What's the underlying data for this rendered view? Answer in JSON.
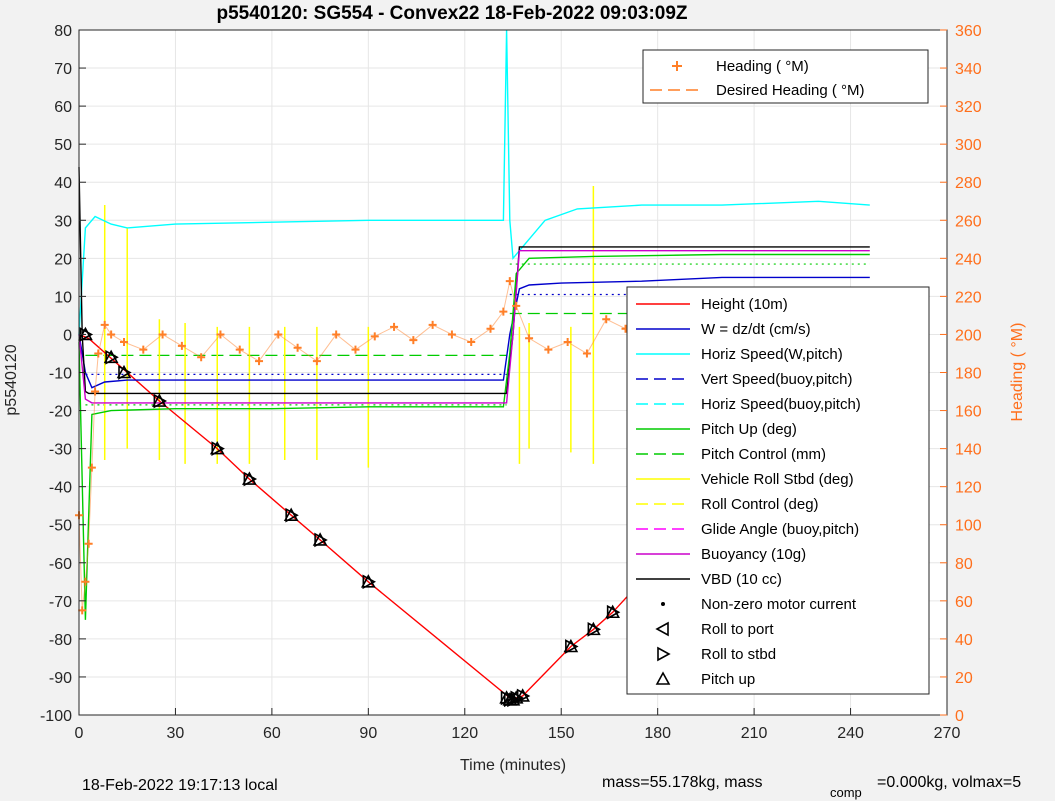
{
  "chart_data": {
    "type": "line",
    "title": "p5540120: SG554 - Convex22 18-Feb-2022 09:03:09Z",
    "xlabel": "Time (minutes)",
    "ylabel": "p5540120",
    "ylabel_right": "Heading (  °M)",
    "xlim": [
      0,
      270
    ],
    "ylim": [
      -100,
      80
    ],
    "ylim_right": [
      0,
      360
    ],
    "x_ticks": [
      "0",
      "30",
      "60",
      "90",
      "120",
      "150",
      "180",
      "210",
      "240",
      "270"
    ],
    "y_ticks": [
      "80",
      "70",
      "60",
      "50",
      "40",
      "30",
      "20",
      "10",
      "0",
      "-10",
      "-20",
      "-30",
      "-40",
      "-50",
      "-60",
      "-70",
      "-80",
      "-90",
      "-100"
    ],
    "y_ticks_right": [
      "360",
      "340",
      "320",
      "300",
      "280",
      "260",
      "240",
      "220",
      "200",
      "180",
      "160",
      "140",
      "120",
      "100",
      "80",
      "60",
      "40",
      "20",
      "0"
    ],
    "grid": true,
    "legend_top": [
      {
        "label": "Heading (  °M)",
        "color": "#ff7f27",
        "style": "marker-plus"
      },
      {
        "label": "Desired Heading (    °M)",
        "color": "#ff7f27",
        "style": "dashed"
      }
    ],
    "legend_main": [
      {
        "label": "Height (10m)",
        "color": "#ff0000",
        "style": "solid"
      },
      {
        "label": "W = dz/dt (cm/s)",
        "color": "#0000cc",
        "style": "solid"
      },
      {
        "label": "Horiz Speed(W,pitch)",
        "color": "#00ffff",
        "style": "solid"
      },
      {
        "label": "Vert Speed(buoy,pitch)",
        "color": "#0000cc",
        "style": "dashed"
      },
      {
        "label": "Horiz Speed(buoy,pitch)",
        "color": "#00ffff",
        "style": "dashed"
      },
      {
        "label": "Pitch Up (deg)",
        "color": "#00cc00",
        "style": "solid"
      },
      {
        "label": "Pitch Control (mm)",
        "color": "#00cc00",
        "style": "dashed"
      },
      {
        "label": "Vehicle Roll Stbd (deg)",
        "color": "#ffff00",
        "style": "solid"
      },
      {
        "label": "Roll Control (deg)",
        "color": "#ffff00",
        "style": "dashed"
      },
      {
        "label": "Glide Angle (buoy,pitch)",
        "color": "#ff00ff",
        "style": "dashed"
      },
      {
        "label": "Buoyancy (10g)",
        "color": "#cc00cc",
        "style": "solid"
      },
      {
        "label": "VBD (10 cc)",
        "color": "#000000",
        "style": "solid"
      },
      {
        "label": "Non-zero motor current",
        "color": "#000000",
        "style": "dot"
      },
      {
        "label": "Roll to port",
        "color": "#000000",
        "style": "tri-left"
      },
      {
        "label": "Roll to stbd",
        "color": "#000000",
        "style": "tri-right"
      },
      {
        "label": "Pitch up",
        "color": "#000000",
        "style": "tri-up"
      }
    ],
    "series": [
      {
        "name": "Height (10m)",
        "color": "#ff0000",
        "x": [
          0,
          3,
          25,
          43,
          53,
          66,
          75,
          90,
          134,
          135,
          136,
          138,
          153,
          160,
          166,
          184,
          198,
          201,
          221,
          232,
          246
        ],
        "y": [
          0,
          -1,
          -17.5,
          -30,
          -38,
          -47.5,
          -54,
          -65,
          -95.5,
          -96,
          -95.5,
          -95,
          -82,
          -77.5,
          -73,
          -56.5,
          -44,
          -42,
          -21.5,
          -12,
          0
        ]
      },
      {
        "name": "W = dz/dt (cm/s)",
        "color": "#0000cc",
        "x": [
          0,
          2,
          4,
          8,
          15,
          30,
          60,
          90,
          120,
          132,
          134,
          137,
          140,
          150,
          175,
          200,
          230,
          246
        ],
        "y": [
          0,
          -10,
          -14,
          -12.5,
          -12,
          -12,
          -12,
          -12,
          -12,
          -12,
          0,
          12,
          13,
          13.5,
          14,
          15,
          15,
          15
        ]
      },
      {
        "name": "Horiz Speed(W,pitch)",
        "color": "#00ffff",
        "x": [
          0,
          2,
          5,
          10,
          15,
          30,
          60,
          90,
          120,
          132,
          133,
          134,
          135,
          137,
          145,
          155,
          175,
          200,
          230,
          246
        ],
        "y": [
          0,
          28,
          31,
          29,
          28,
          29,
          29.5,
          30,
          30,
          30,
          80,
          30,
          20,
          22,
          30,
          33,
          34,
          34,
          35,
          34
        ]
      },
      {
        "name": "Pitch Up (deg)",
        "color": "#00cc00",
        "x": [
          0,
          2,
          4,
          10,
          30,
          60,
          90,
          120,
          132,
          134,
          136,
          140,
          160,
          200,
          246
        ],
        "y": [
          -2,
          -75,
          -21,
          -20,
          -19.5,
          -19.5,
          -19,
          -19,
          -19,
          -5,
          16,
          20,
          20.5,
          21,
          21
        ]
      },
      {
        "name": "VBD (10 cc)",
        "color": "#000000",
        "x": [
          0,
          1,
          2,
          3,
          133,
          135,
          137,
          246
        ],
        "y": [
          44,
          0,
          -15,
          -15.5,
          -15.5,
          0,
          23,
          23
        ]
      },
      {
        "name": "Buoyancy (10g)",
        "color": "#cc00cc",
        "x": [
          0,
          2,
          4,
          133,
          135,
          137,
          246
        ],
        "y": [
          0,
          -17,
          -18,
          -18,
          0,
          22,
          22
        ]
      },
      {
        "name": "Heading (  °M)",
        "color": "#ff7f27",
        "axis": "right",
        "x": [
          0,
          1,
          2,
          3,
          4,
          5,
          6,
          8,
          10,
          14,
          20,
          26,
          32,
          38,
          44,
          50,
          56,
          62,
          68,
          74,
          80,
          86,
          92,
          98,
          104,
          110,
          116,
          122,
          128,
          132,
          134,
          136,
          140,
          146,
          152,
          158,
          164,
          170,
          176,
          182,
          188,
          194,
          200,
          206,
          212,
          218,
          224,
          230,
          236,
          242,
          246
        ],
        "y": [
          105,
          55,
          70,
          90,
          130,
          170,
          190,
          205,
          200,
          196,
          192,
          200,
          194,
          188,
          200,
          192,
          186,
          200,
          193,
          186,
          200,
          192,
          199,
          204,
          197,
          205,
          200,
          196,
          203,
          212,
          228,
          215,
          198,
          192,
          196,
          190,
          208,
          203,
          198,
          195,
          202,
          198,
          194,
          200,
          197,
          195,
          196,
          193,
          198,
          201,
          205
        ]
      }
    ],
    "reference_lines": [
      {
        "name": "Vert Speed(buoy,pitch) -",
        "color": "#0000cc",
        "style": "dotted",
        "y": -10.5,
        "x_range": [
          2,
          133
        ]
      },
      {
        "name": "Vert Speed(buoy,pitch) +",
        "color": "#0000cc",
        "style": "dotted",
        "y": 10.5,
        "x_range": [
          134,
          246
        ]
      },
      {
        "name": "Pitch Control -",
        "color": "#00cc00",
        "style": "dashed",
        "y": -5.5,
        "x_range": [
          2,
          133
        ]
      },
      {
        "name": "Pitch Control +",
        "color": "#00cc00",
        "style": "dashed",
        "y": 5.5,
        "x_range": [
          134,
          246
        ]
      },
      {
        "name": "Pitch Up ref -",
        "color": "#00cc00",
        "style": "dotted",
        "y": -18.5,
        "x_range": [
          2,
          133
        ]
      },
      {
        "name": "Pitch Up ref +",
        "color": "#00cc00",
        "style": "dotted",
        "y": 18.5,
        "x_range": [
          134,
          246
        ]
      }
    ],
    "roll_spikes": {
      "color": "#ffff00",
      "x": [
        8,
        15,
        25,
        33,
        43,
        53,
        64,
        74,
        90,
        137,
        140,
        153,
        160,
        178,
        188,
        205,
        221,
        233
      ],
      "y_top": [
        34,
        28,
        4,
        3,
        2,
        2,
        2,
        2,
        2,
        2,
        3,
        2,
        39,
        2,
        10,
        3,
        2,
        2
      ],
      "y_bottom": [
        -33,
        -30,
        -33,
        -34,
        -34,
        -34,
        -33,
        -33,
        -35,
        -34,
        -30,
        -31,
        -34,
        -30,
        -30,
        -28,
        -26,
        -25
      ]
    },
    "markers": {
      "x": [
        2,
        10,
        14,
        25,
        43,
        53,
        66,
        75,
        90,
        133,
        134,
        135,
        136,
        138,
        153,
        160,
        166,
        184,
        198,
        201,
        221,
        232
      ],
      "y": [
        0,
        -6,
        -10,
        -17.5,
        -30,
        -38,
        -47.5,
        -54,
        -65,
        -95.5,
        -96,
        -96,
        -95.5,
        -95,
        -82,
        -77.5,
        -73,
        -56.5,
        -44,
        -42,
        -21.5,
        -12
      ]
    }
  },
  "footer": {
    "local_time": "18-Feb-2022 19:17:13 local",
    "mass_text": "mass=55.178kg, mass",
    "comp_sub": "comp",
    "volmax_text": "=0.000kg, volmax=5"
  }
}
